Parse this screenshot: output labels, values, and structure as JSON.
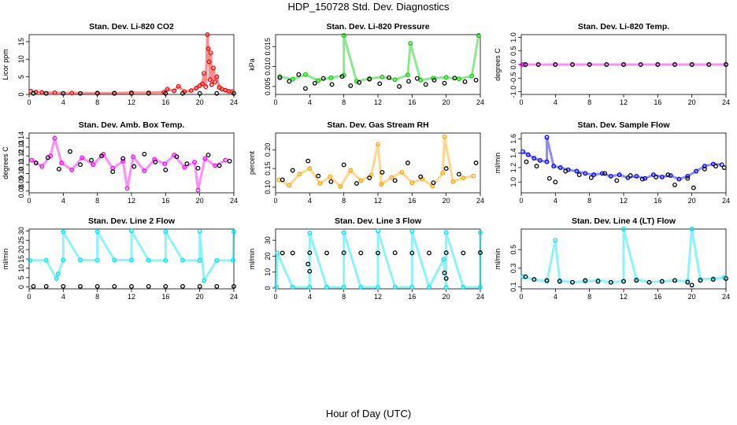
{
  "title": "HDP_150728  Std. Dev. Diagnostics",
  "xlabel": "Hour of Day (UTC)",
  "colors": {
    "black": "#000000",
    "red": "#ff0000",
    "green": "#00cc00",
    "magenta": "#ff00ff",
    "orange": "#ffa500",
    "blue": "#0000ff",
    "cyan": "#00e5ee"
  },
  "chart_data": [
    {
      "type": "scatter",
      "title": "Stan. Dev. Li-820 CO2",
      "ylabel": "Licor ppm",
      "xlim": [
        0,
        24
      ],
      "ylim": [
        0,
        17
      ],
      "xticks": [
        0,
        4,
        8,
        12,
        16,
        20,
        24
      ],
      "yticks": [
        0,
        5,
        10,
        15
      ],
      "ytick_labels": [
        "0",
        "5",
        "10",
        "15"
      ],
      "grid": false,
      "series": [
        {
          "name": "sample",
          "color": "#ff0000",
          "x": [
            0.2,
            0.8,
            1.5,
            3.0,
            5.0,
            8.0,
            10.0,
            12.0,
            14.0,
            15.8,
            16.2,
            17.0,
            17.5,
            18.2,
            19.0,
            19.6,
            20.0,
            20.3,
            20.5,
            20.7,
            20.9,
            21.0,
            21.1,
            21.2,
            21.3,
            21.4,
            21.6,
            21.8,
            22.0,
            22.3,
            22.6,
            23.0,
            23.4,
            23.8
          ],
          "y": [
            0.9,
            0.7,
            0.6,
            0.5,
            0.4,
            0.4,
            0.4,
            0.5,
            0.5,
            0.6,
            1.5,
            1.0,
            2.3,
            0.8,
            1.1,
            1.8,
            2.5,
            3.0,
            6.0,
            2.2,
            17.0,
            13.0,
            9.3,
            4.2,
            11.8,
            2.8,
            7.5,
            3.6,
            5.0,
            2.0,
            1.5,
            1.2,
            0.9,
            0.8
          ]
        },
        {
          "name": "reference",
          "color": "#000000",
          "x": [
            0.5,
            2.0,
            4.0,
            6.0,
            8.0,
            10.0,
            12.0,
            14.0,
            16.0,
            18.0,
            20.0,
            22.0,
            24.0
          ],
          "y": [
            0.3,
            0.3,
            0.3,
            0.3,
            0.3,
            0.3,
            0.3,
            0.3,
            0.3,
            0.3,
            0.3,
            0.3,
            0.3
          ]
        }
      ]
    },
    {
      "type": "scatter",
      "title": "Stan. Dev. Li-820 Pressure",
      "ylabel": "kPa",
      "xlim": [
        0,
        24
      ],
      "ylim": [
        0.003,
        0.018
      ],
      "xticks": [
        0,
        4,
        8,
        12,
        16,
        20,
        24
      ],
      "yticks": [
        0.005,
        0.01,
        0.015
      ],
      "ytick_labels": [
        "0.005",
        "0.010",
        "0.015"
      ],
      "grid": false,
      "series": [
        {
          "name": "sample",
          "color": "#00cc00",
          "x": [
            0.5,
            2.0,
            3.5,
            5.0,
            6.5,
            8.0,
            9.5,
            11.0,
            12.5,
            14.0,
            15.5,
            17.0,
            18.5,
            20.0,
            21.5,
            23.0,
            8.0,
            15.8,
            23.8
          ],
          "y": [
            0.0075,
            0.0068,
            0.008,
            0.0065,
            0.0072,
            0.0078,
            0.0063,
            0.007,
            0.0074,
            0.0067,
            0.0079,
            0.0066,
            0.0071,
            0.0073,
            0.0069,
            0.0076,
            0.0178,
            0.0158,
            0.0178
          ]
        },
        {
          "name": "reference",
          "color": "#000000",
          "x": [
            0.5,
            1.6,
            2.7,
            3.5,
            4.6,
            5.6,
            6.6,
            7.8,
            8.8,
            9.8,
            11.0,
            12.2,
            13.3,
            14.5,
            15.6,
            16.6,
            17.6,
            18.6,
            19.8,
            21.0,
            22.2,
            23.5
          ],
          "y": [
            0.0072,
            0.0063,
            0.008,
            0.0045,
            0.0058,
            0.007,
            0.0055,
            0.0075,
            0.0052,
            0.006,
            0.0068,
            0.0057,
            0.0072,
            0.005,
            0.0063,
            0.007,
            0.0055,
            0.0066,
            0.0058,
            0.0071,
            0.0062,
            0.0066
          ]
        }
      ]
    },
    {
      "type": "scatter",
      "title": "Stan. Dev. Li-820 Temp.",
      "ylabel": "degrees C",
      "xlim": [
        0,
        24
      ],
      "ylim": [
        -1.1,
        1.1
      ],
      "xticks": [
        0,
        4,
        8,
        12,
        16,
        20,
        24
      ],
      "yticks": [
        -1,
        -0.5,
        0,
        0.5,
        1
      ],
      "ytick_labels": [
        "-1.0",
        "-0.5",
        "0.0",
        "0.5",
        "1.0"
      ],
      "grid": false,
      "series": [
        {
          "name": "sample",
          "color": "#ff00ff",
          "x": [
            0.1,
            0.3,
            4.0,
            8.0,
            12.0,
            16.0,
            20.0,
            24.0
          ],
          "y": [
            0,
            0,
            0,
            0,
            0,
            0,
            0,
            0
          ]
        },
        {
          "name": "reference",
          "color": "#000000",
          "x": [
            0.5,
            2.0,
            4.0,
            6.0,
            8.0,
            10.0,
            12.0,
            14.0,
            16.0,
            18.0,
            20.0,
            22.0,
            24.0
          ],
          "y": [
            0,
            0,
            0,
            0,
            0,
            0,
            0,
            0,
            0,
            0,
            0,
            0,
            0
          ]
        }
      ]
    },
    {
      "type": "scatter",
      "title": "Stan. Dev. Amb. Box Temp.",
      "ylabel": "degrees C",
      "xlim": [
        0,
        24
      ],
      "ylim": [
        0.078,
        0.146
      ],
      "xticks": [
        0,
        4,
        8,
        12,
        16,
        20,
        24
      ],
      "yticks": [
        0.08,
        0.09,
        0.1,
        0.11,
        0.12,
        0.13,
        0.14
      ],
      "ytick_labels": [
        "0.08",
        "0.09",
        "0.10",
        "0.11",
        "0.12",
        "0.13",
        "0.14"
      ],
      "grid": false,
      "series": [
        {
          "name": "sample",
          "color": "#ff00ff",
          "x": [
            0.3,
            1.5,
            2.5,
            3.8,
            5.0,
            6.2,
            7.5,
            8.7,
            9.8,
            11.0,
            12.2,
            13.5,
            14.7,
            15.9,
            17.0,
            18.2,
            19.4,
            20.6,
            21.8,
            23.0,
            3.0,
            11.5,
            19.8
          ],
          "y": [
            0.115,
            0.108,
            0.12,
            0.112,
            0.104,
            0.118,
            0.11,
            0.122,
            0.106,
            0.114,
            0.119,
            0.103,
            0.116,
            0.111,
            0.121,
            0.107,
            0.113,
            0.117,
            0.109,
            0.115,
            0.14,
            0.083,
            0.081
          ]
        },
        {
          "name": "reference",
          "color": "#000000",
          "x": [
            0.8,
            2.2,
            3.5,
            4.8,
            6.0,
            7.3,
            8.5,
            9.8,
            11.0,
            12.3,
            13.5,
            14.8,
            16.0,
            17.3,
            18.5,
            19.8,
            21.0,
            22.3,
            23.5
          ],
          "y": [
            0.112,
            0.118,
            0.105,
            0.125,
            0.11,
            0.115,
            0.12,
            0.102,
            0.117,
            0.108,
            0.122,
            0.113,
            0.104,
            0.119,
            0.111,
            0.106,
            0.121,
            0.109,
            0.114
          ]
        }
      ]
    },
    {
      "type": "scatter",
      "title": "Stan. Dev. Gas Stream RH",
      "ylabel": "percent",
      "xlim": [
        0,
        24
      ],
      "ylim": [
        0.085,
        0.245
      ],
      "xticks": [
        0,
        4,
        8,
        12,
        16,
        20,
        24
      ],
      "yticks": [
        0.1,
        0.15,
        0.2
      ],
      "ytick_labels": [
        "0.10",
        "0.15",
        "0.20"
      ],
      "grid": false,
      "series": [
        {
          "name": "sample",
          "color": "#ffa500",
          "x": [
            0.4,
            1.6,
            2.8,
            4.0,
            5.2,
            6.4,
            7.6,
            8.8,
            10.0,
            11.2,
            12.4,
            13.6,
            14.8,
            16.0,
            17.2,
            18.4,
            19.6,
            20.8,
            22.0,
            23.2,
            12.0,
            19.8
          ],
          "y": [
            0.12,
            0.105,
            0.135,
            0.15,
            0.11,
            0.128,
            0.102,
            0.145,
            0.118,
            0.132,
            0.108,
            0.126,
            0.14,
            0.112,
            0.122,
            0.103,
            0.138,
            0.115,
            0.125,
            0.13,
            0.215,
            0.235
          ]
        },
        {
          "name": "reference",
          "color": "#000000",
          "x": [
            0.8,
            2.0,
            3.8,
            5.0,
            6.5,
            8.0,
            9.5,
            11.0,
            12.5,
            14.0,
            15.5,
            17.0,
            18.5,
            20.0,
            21.5,
            23.5
          ],
          "y": [
            0.12,
            0.145,
            0.17,
            0.13,
            0.115,
            0.16,
            0.11,
            0.125,
            0.14,
            0.118,
            0.165,
            0.128,
            0.112,
            0.15,
            0.135,
            0.165
          ]
        }
      ]
    },
    {
      "type": "scatter",
      "title": "Stan. Dev. Sample Flow",
      "ylabel": "ml/min",
      "xlim": [
        0,
        24
      ],
      "ylim": [
        0.85,
        1.68
      ],
      "xticks": [
        0,
        4,
        8,
        12,
        16,
        20,
        24
      ],
      "yticks": [
        1.0,
        1.2,
        1.4,
        1.6
      ],
      "ytick_labels": [
        "1.0",
        "1.2",
        "1.4",
        "1.6"
      ],
      "grid": false,
      "series": [
        {
          "name": "sample",
          "color": "#0000ff",
          "x": [
            0.2,
            0.8,
            1.5,
            2.2,
            3.0,
            3.8,
            4.6,
            5.5,
            6.5,
            7.5,
            8.5,
            9.5,
            10.5,
            11.5,
            12.5,
            13.5,
            14.5,
            15.5,
            16.5,
            17.5,
            18.5,
            19.5,
            20.5,
            21.5,
            22.5,
            23.5,
            3.0
          ],
          "y": [
            1.42,
            1.38,
            1.33,
            1.3,
            1.28,
            1.22,
            1.2,
            1.17,
            1.15,
            1.12,
            1.1,
            1.12,
            1.08,
            1.1,
            1.06,
            1.08,
            1.05,
            1.1,
            1.07,
            1.09,
            1.04,
            1.08,
            1.15,
            1.22,
            1.25,
            1.24,
            1.62
          ]
        },
        {
          "name": "reference",
          "color": "#000000",
          "x": [
            0.6,
            1.8,
            3.3,
            4.0,
            5.2,
            6.8,
            8.2,
            9.8,
            11.2,
            12.8,
            14.2,
            15.8,
            17.2,
            18.0,
            19.5,
            20.2,
            21.5,
            22.8,
            23.8
          ],
          "y": [
            1.28,
            1.22,
            1.05,
            1.0,
            1.15,
            1.1,
            1.06,
            1.12,
            1.02,
            1.09,
            1.04,
            1.07,
            1.1,
            0.96,
            1.05,
            0.92,
            1.18,
            1.22,
            1.2
          ]
        }
      ]
    },
    {
      "type": "scatter",
      "title": "Stan. Dev. Line 2 Flow",
      "ylabel": "ml/min",
      "xlim": [
        0,
        24
      ],
      "ylim": [
        -1,
        31
      ],
      "xticks": [
        0,
        4,
        8,
        12,
        16,
        20,
        24
      ],
      "yticks": [
        0,
        5,
        10,
        15,
        20,
        25,
        30
      ],
      "ytick_labels": [
        "0",
        "5",
        "10",
        "15",
        "20",
        "25",
        "30"
      ],
      "grid": false,
      "series": [
        {
          "name": "sample",
          "color": "#00e5ee",
          "x": [
            0.1,
            2.0,
            4.0,
            6.0,
            8.0,
            10.0,
            12.0,
            14.0,
            16.0,
            18.0,
            20.0,
            22.0,
            23.9,
            3.4,
            3.2,
            4.0,
            8.0,
            12.0,
            16.0,
            20.0,
            24.0,
            20.5
          ],
          "y": [
            14.2,
            14.3,
            14.4,
            14.4,
            14.3,
            14.4,
            14.4,
            14.3,
            14.2,
            14.3,
            14.1,
            14.2,
            14.3,
            7.0,
            4.5,
            29.5,
            29.6,
            30.0,
            29.6,
            29.8,
            29.5,
            3.5
          ]
        },
        {
          "name": "reference",
          "color": "#000000",
          "x": [
            0.5,
            2.0,
            4.0,
            6.0,
            8.0,
            10.0,
            12.0,
            14.0,
            16.0,
            18.0,
            20.0,
            22.0,
            24.0
          ],
          "y": [
            0.3,
            0.3,
            0.3,
            0.3,
            0.3,
            0.3,
            0.3,
            0.3,
            0.3,
            0.3,
            0.3,
            0.3,
            0.3
          ]
        }
      ]
    },
    {
      "type": "scatter",
      "title": "Stan. Dev. Line 3 Flow",
      "ylabel": "ml/min",
      "xlim": [
        0,
        24
      ],
      "ylim": [
        -0.5,
        37
      ],
      "xticks": [
        0,
        4,
        8,
        12,
        16,
        20,
        24
      ],
      "yticks": [
        0,
        10,
        20,
        30
      ],
      "ytick_labels": [
        "0",
        "10",
        "20",
        "30"
      ],
      "grid": false,
      "series": [
        {
          "name": "sample",
          "color": "#00e5ee",
          "x": [
            0.1,
            2.0,
            4.0,
            6.0,
            8.0,
            10.0,
            12.0,
            14.0,
            16.0,
            18.0,
            20.0,
            22.0,
            24.0,
            0.2,
            19.7,
            4.0,
            8.0,
            12.0,
            16.0,
            20.0,
            24.0
          ],
          "y": [
            0.5,
            0.5,
            0.5,
            0.5,
            0.5,
            0.5,
            0.5,
            0.5,
            0.5,
            0.5,
            0.5,
            0.5,
            0.5,
            22.0,
            18.0,
            34.5,
            34.8,
            35.8,
            35.5,
            35.0,
            34.8
          ]
        },
        {
          "name": "reference",
          "color": "#000000",
          "x": [
            0.8,
            2.0,
            4.0,
            6.0,
            8.0,
            10.0,
            12.0,
            14.0,
            16.0,
            18.0,
            20.0,
            22.0,
            24.0,
            3.8,
            4.0,
            19.8,
            20.0
          ],
          "y": [
            22.0,
            22.0,
            22.1,
            22.0,
            22.1,
            22.0,
            22.0,
            22.1,
            22.0,
            22.0,
            22.1,
            22.0,
            22.2,
            15.0,
            10.5,
            9.5,
            6.0
          ]
        }
      ]
    },
    {
      "type": "scatter",
      "title": "Stan. Dev. Line 4 (LT) Flow",
      "ylabel": "ml/min",
      "xlim": [
        0,
        24
      ],
      "ylim": [
        0.08,
        0.72
      ],
      "xticks": [
        0,
        4,
        8,
        12,
        16,
        20,
        24
      ],
      "yticks": [
        0.1,
        0.3,
        0.5
      ],
      "ytick_labels": [
        "0.1",
        "0.3",
        "0.5"
      ],
      "grid": false,
      "series": [
        {
          "name": "sample",
          "color": "#00e5ee",
          "x": [
            0.2,
            1.5,
            3.0,
            4.5,
            6.0,
            7.5,
            9.0,
            10.5,
            12.0,
            13.5,
            15.0,
            16.5,
            18.0,
            19.5,
            21.0,
            22.5,
            23.8,
            4.0,
            12.0,
            20.0
          ],
          "y": [
            0.21,
            0.18,
            0.16,
            0.17,
            0.15,
            0.16,
            0.17,
            0.15,
            0.16,
            0.18,
            0.15,
            0.16,
            0.17,
            0.16,
            0.18,
            0.19,
            0.2,
            0.6,
            0.72,
            0.72
          ]
        },
        {
          "name": "reference",
          "color": "#000000",
          "x": [
            0.5,
            1.5,
            3.0,
            4.5,
            6.0,
            7.5,
            9.0,
            10.5,
            12.0,
            13.5,
            15.0,
            16.5,
            18.0,
            19.5,
            20.0,
            21.0,
            22.5,
            24.0
          ],
          "y": [
            0.21,
            0.18,
            0.17,
            0.16,
            0.15,
            0.17,
            0.16,
            0.15,
            0.16,
            0.17,
            0.15,
            0.16,
            0.17,
            0.15,
            0.12,
            0.17,
            0.18,
            0.19
          ]
        }
      ]
    }
  ]
}
